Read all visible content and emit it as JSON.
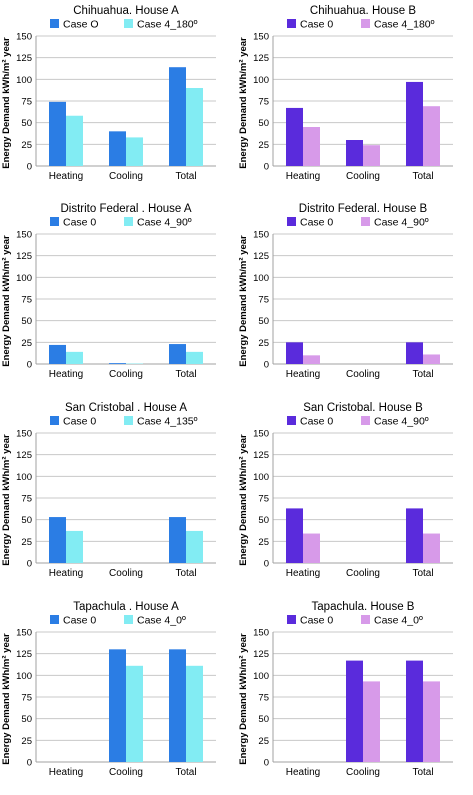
{
  "colors": {
    "house_a_case0": "#2b7de4",
    "house_a_case4": "#82ecf3",
    "house_b_case0": "#5a2bdc",
    "house_b_case4": "#d79ae9",
    "grid": "#c8c8c8",
    "axis": "#a0a0a0"
  },
  "chart_data": [
    {
      "type": "bar",
      "title": "Chihuahua. House A",
      "ylabel": "Energy Demand kWh/m² year",
      "ylim": [
        0,
        150
      ],
      "yticks": [
        0,
        25,
        50,
        75,
        100,
        125,
        150
      ],
      "grid": true,
      "legend": "top",
      "categories": [
        "Heating",
        "Cooling",
        "Total"
      ],
      "series": [
        {
          "name": "Case O",
          "values": [
            74,
            40,
            114
          ]
        },
        {
          "name": "Case 4_180º",
          "values": [
            58,
            33,
            90
          ]
        }
      ]
    },
    {
      "type": "bar",
      "title": "Chihuahua. House B",
      "ylabel": "Energy Demand kWh/m² year",
      "ylim": [
        0,
        150
      ],
      "yticks": [
        0,
        25,
        50,
        75,
        100,
        125,
        150
      ],
      "grid": true,
      "legend": "top",
      "categories": [
        "Heating",
        "Cooling",
        "Total"
      ],
      "series": [
        {
          "name": "Case 0",
          "values": [
            67,
            30,
            97
          ]
        },
        {
          "name": "Case 4_180º",
          "values": [
            45,
            24,
            69
          ]
        }
      ]
    },
    {
      "type": "bar",
      "title": "Distrito Federal . House A",
      "ylabel": "Energy Demand kWh/m² year",
      "ylim": [
        0,
        150
      ],
      "yticks": [
        0,
        25,
        50,
        75,
        100,
        125,
        150
      ],
      "grid": true,
      "legend": "top",
      "categories": [
        "Heating",
        "Cooling",
        "Total"
      ],
      "series": [
        {
          "name": "Case 0",
          "values": [
            22,
            1,
            23
          ]
        },
        {
          "name": "Case 4_90º",
          "values": [
            14,
            0.5,
            14
          ]
        }
      ]
    },
    {
      "type": "bar",
      "title": "Distrito Federal. House B",
      "ylabel": "Energy Demand kWh/m² year",
      "ylim": [
        0,
        150
      ],
      "yticks": [
        0,
        25,
        50,
        75,
        100,
        125,
        150
      ],
      "grid": true,
      "legend": "top",
      "categories": [
        "Heating",
        "Cooling",
        "Total"
      ],
      "series": [
        {
          "name": "Case 0",
          "values": [
            25,
            0,
            25
          ]
        },
        {
          "name": "Case 4_90º",
          "values": [
            10,
            0,
            11
          ]
        }
      ]
    },
    {
      "type": "bar",
      "title": "San Cristobal . House A",
      "ylabel": "Energy Demand kWh/m² year",
      "ylim": [
        0,
        150
      ],
      "yticks": [
        0,
        25,
        50,
        75,
        100,
        125,
        150
      ],
      "grid": true,
      "legend": "top",
      "categories": [
        "Heating",
        "Cooling",
        "Total"
      ],
      "series": [
        {
          "name": "Case 0",
          "values": [
            53,
            0,
            53
          ]
        },
        {
          "name": "Case 4_135º",
          "values": [
            37,
            0,
            37
          ]
        }
      ]
    },
    {
      "type": "bar",
      "title": "San Cristobal. House B",
      "ylabel": "Energy Demand kWh/m² year",
      "ylim": [
        0,
        150
      ],
      "yticks": [
        0,
        25,
        50,
        75,
        100,
        125,
        150
      ],
      "grid": true,
      "legend": "top",
      "categories": [
        "Heating",
        "Cooling",
        "Total"
      ],
      "series": [
        {
          "name": "Case 0",
          "values": [
            63,
            0,
            63
          ]
        },
        {
          "name": "Case 4_90º",
          "values": [
            34,
            0,
            34
          ]
        }
      ]
    },
    {
      "type": "bar",
      "title": "Tapachula . House A",
      "ylabel": "Energy Demand kWh/m² year",
      "ylim": [
        0,
        150
      ],
      "yticks": [
        0,
        25,
        50,
        75,
        100,
        125,
        150
      ],
      "grid": true,
      "legend": "top",
      "categories": [
        "Heating",
        "Cooling",
        "Total"
      ],
      "series": [
        {
          "name": "Case 0",
          "values": [
            0,
            130,
            130
          ]
        },
        {
          "name": "Case 4_0º",
          "values": [
            0,
            111,
            111
          ]
        }
      ]
    },
    {
      "type": "bar",
      "title": "Tapachula. House B",
      "ylabel": "Energy Demand kWh/m² year",
      "ylim": [
        0,
        150
      ],
      "yticks": [
        0,
        25,
        50,
        75,
        100,
        125,
        150
      ],
      "grid": true,
      "legend": "top",
      "categories": [
        "Heating",
        "Cooling",
        "Total"
      ],
      "series": [
        {
          "name": "Case 0",
          "values": [
            0,
            117,
            117
          ]
        },
        {
          "name": "Case 4_0º",
          "values": [
            0,
            93,
            93
          ]
        }
      ]
    }
  ]
}
